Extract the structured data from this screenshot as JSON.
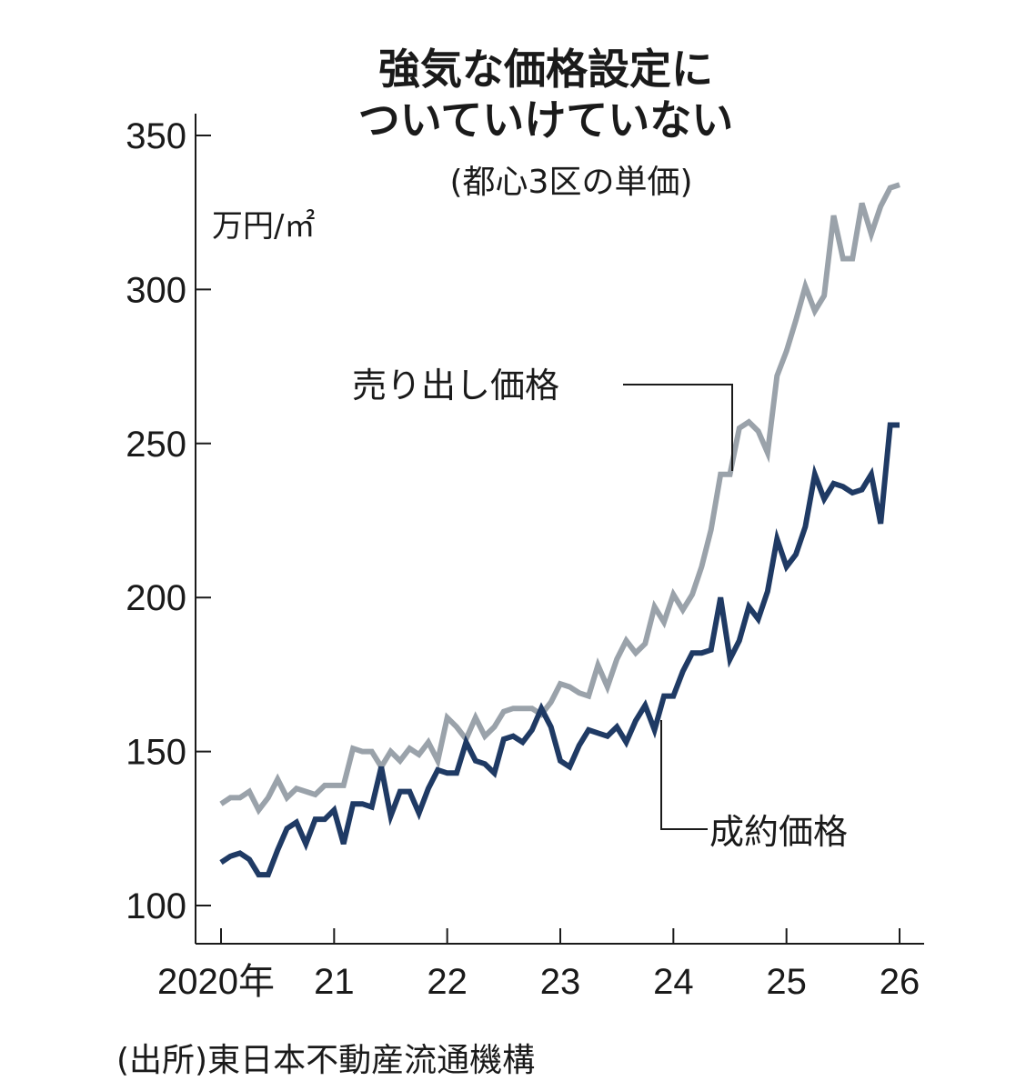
{
  "chart_data": {
    "type": "line",
    "title_line1": "強気な価格設定に",
    "title_line2": "ついていけていない",
    "subtitle": "(都心3区の単価)",
    "ylabel": "万円/㎡",
    "ylim": [
      100,
      350
    ],
    "xlim": [
      2020,
      2026
    ],
    "yticks": [
      "100",
      "150",
      "200",
      "250",
      "300",
      "350"
    ],
    "xtick_labels": [
      "2020年",
      "21",
      "22",
      "23",
      "24",
      "25",
      "26"
    ],
    "source": "(出所)東日本不動産流通機構",
    "grid": false,
    "series": [
      {
        "name": "売り出し価格",
        "color": "#9aa2aa",
        "x": [
          2020.0,
          2020.083,
          2020.167,
          2020.25,
          2020.333,
          2020.417,
          2020.5,
          2020.583,
          2020.667,
          2020.75,
          2020.833,
          2020.917,
          2021.0,
          2021.083,
          2021.167,
          2021.25,
          2021.333,
          2021.417,
          2021.5,
          2021.583,
          2021.667,
          2021.75,
          2021.833,
          2021.917,
          2022.0,
          2022.083,
          2022.167,
          2022.25,
          2022.333,
          2022.417,
          2022.5,
          2022.583,
          2022.667,
          2022.75,
          2022.833,
          2022.917,
          2023.0,
          2023.083,
          2023.167,
          2023.25,
          2023.333,
          2023.417,
          2023.5,
          2023.583,
          2023.667,
          2023.75,
          2023.833,
          2023.917,
          2024.0,
          2024.083,
          2024.167,
          2024.25,
          2024.333,
          2024.417,
          2024.5,
          2024.583,
          2024.667,
          2024.75,
          2024.833,
          2024.917,
          2025.0,
          2025.083,
          2025.167,
          2025.25,
          2025.333,
          2025.417,
          2025.5,
          2025.583,
          2025.667,
          2025.75,
          2025.833,
          2025.917,
          2026.0
        ],
        "values": [
          133,
          135,
          135,
          137,
          131,
          135,
          141,
          135,
          138,
          137,
          136,
          139,
          139,
          139,
          151,
          150,
          150,
          145,
          150,
          147,
          151,
          149,
          153,
          147,
          161,
          158,
          154,
          161,
          155,
          158,
          163,
          164,
          164,
          164,
          162,
          166,
          172,
          171,
          169,
          168,
          178,
          171,
          180,
          186,
          182,
          185,
          197,
          192,
          201,
          196,
          201,
          210,
          222,
          240,
          240,
          255,
          257,
          254,
          247,
          272,
          280,
          290,
          301,
          293,
          298,
          324,
          310,
          310,
          328,
          318,
          327,
          333,
          334
        ]
      },
      {
        "name": "成約価格",
        "color": "#1f3a64",
        "x": [
          2020.0,
          2020.083,
          2020.167,
          2020.25,
          2020.333,
          2020.417,
          2020.5,
          2020.583,
          2020.667,
          2020.75,
          2020.833,
          2020.917,
          2021.0,
          2021.083,
          2021.167,
          2021.25,
          2021.333,
          2021.417,
          2021.5,
          2021.583,
          2021.667,
          2021.75,
          2021.833,
          2021.917,
          2022.0,
          2022.083,
          2022.167,
          2022.25,
          2022.333,
          2022.417,
          2022.5,
          2022.583,
          2022.667,
          2022.75,
          2022.833,
          2022.917,
          2023.0,
          2023.083,
          2023.167,
          2023.25,
          2023.333,
          2023.417,
          2023.5,
          2023.583,
          2023.667,
          2023.75,
          2023.833,
          2023.917,
          2024.0,
          2024.083,
          2024.167,
          2024.25,
          2024.333,
          2024.417,
          2024.5,
          2024.583,
          2024.667,
          2024.75,
          2024.833,
          2024.917,
          2025.0,
          2025.083,
          2025.167,
          2025.25,
          2025.333,
          2025.417,
          2025.5,
          2025.583,
          2025.667,
          2025.75,
          2025.833,
          2025.917,
          2026.0
        ],
        "values": [
          114,
          116,
          117,
          115,
          110,
          110,
          118,
          125,
          127,
          120,
          128,
          128,
          131,
          120,
          133,
          133,
          132,
          145,
          129,
          137,
          137,
          130,
          138,
          144,
          143,
          143,
          153,
          147,
          146,
          143,
          154,
          155,
          153,
          157,
          164,
          158,
          147,
          145,
          152,
          157,
          156,
          155,
          158,
          153,
          160,
          165,
          157,
          168,
          168,
          176,
          182,
          182,
          183,
          200,
          180,
          186,
          197,
          193,
          202,
          219,
          210,
          214,
          223,
          240,
          232,
          237,
          236,
          234,
          235,
          240,
          224,
          256,
          256
        ]
      }
    ]
  }
}
